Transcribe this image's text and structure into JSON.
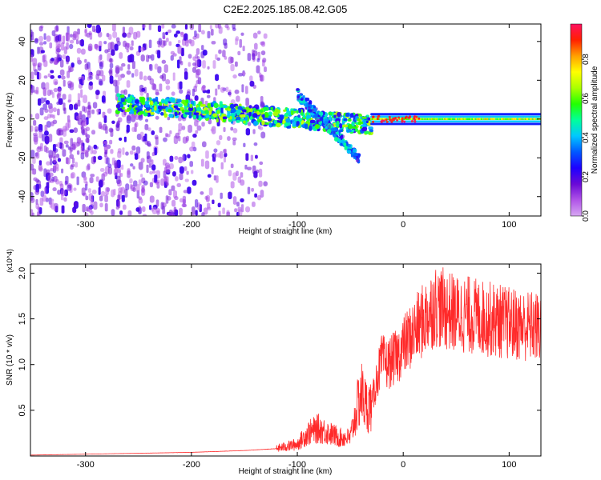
{
  "figure_title": "C2E2.2025.185.08.42.G05",
  "chart_data": [
    {
      "type": "heatmap",
      "title": "C2E2.2025.185.08.42.G05",
      "xlabel": "Height of straight line (km)",
      "ylabel": "Frequency (Hz)",
      "xlim": [
        -352,
        130
      ],
      "ylim": [
        -50,
        49
      ],
      "x_ticks": [
        -300,
        -200,
        -100,
        0,
        100
      ],
      "x_tick_labels": [
        "-300",
        "-200",
        "-100",
        "0",
        "100"
      ],
      "y_ticks": [
        -40,
        -20,
        0,
        20,
        40
      ],
      "y_tick_labels": [
        "-40",
        "-20",
        "0",
        "20",
        "40"
      ],
      "colorbar": {
        "label": "Normalized spectral amplitude",
        "range": [
          0,
          0.98
        ],
        "ticks": [
          0.0,
          0.2,
          0.4,
          0.6,
          0.8
        ],
        "tick_labels": [
          "0.0",
          "0.2",
          "0.4",
          "0.6",
          "0.8"
        ],
        "colormap": [
          "#d7a6f2",
          "#b054e8",
          "#6a0ad6",
          "#1e00ff",
          "#0058ff",
          "#00c8ff",
          "#00ff9a",
          "#22ff00",
          "#aaff00",
          "#ffff00",
          "#ffa000",
          "#ff2000",
          "#ff1060"
        ]
      },
      "regions": [
        {
          "name": "broadband noise",
          "x": [
            -352,
            -130
          ],
          "freq_range": [
            -50,
            49
          ],
          "amplitude": 0.15
        },
        {
          "name": "signal track",
          "x": [
            -270,
            -30
          ],
          "freq_start": 8,
          "freq_end": -3,
          "amplitude": 0.55
        },
        {
          "name": "secondary branch",
          "x": [
            -100,
            -42
          ],
          "freq_start": 13,
          "freq_end": -20,
          "amplitude": 0.3
        },
        {
          "name": "stable tone",
          "x": [
            -30,
            130
          ],
          "freq": 0,
          "amplitude": 0.6
        }
      ]
    },
    {
      "type": "line",
      "xlabel": "Height of straight line (km)",
      "ylabel": "SNR (10 * v/v)",
      "y_multiplier": "(x10^4)",
      "xlim": [
        -352,
        130
      ],
      "ylim": [
        0,
        2.1
      ],
      "x_ticks": [
        -300,
        -200,
        -100,
        0,
        100
      ],
      "x_tick_labels": [
        "-300",
        "-200",
        "-100",
        "0",
        "100"
      ],
      "y_ticks": [
        0.5,
        1.0,
        1.5,
        2.0
      ],
      "y_tick_labels": [
        "0.5",
        "1.0",
        "1.5",
        "2.0"
      ],
      "line_color": "#ff2a2a",
      "series": [
        {
          "x": [
            -352,
            -300,
            -250,
            -200,
            -150,
            -120,
            -100,
            -90,
            -80,
            -70,
            -60,
            -50,
            -45,
            -40,
            -35,
            -30,
            -25,
            -20,
            -15,
            -10,
            -5,
            0,
            10,
            20,
            30,
            40,
            50,
            60,
            70,
            80,
            90,
            100,
            110,
            120,
            130
          ],
          "y": [
            0.01,
            0.02,
            0.03,
            0.04,
            0.06,
            0.08,
            0.13,
            0.25,
            0.3,
            0.25,
            0.2,
            0.2,
            0.45,
            0.7,
            0.55,
            0.55,
            0.85,
            1.05,
            1.0,
            1.05,
            1.1,
            1.2,
            1.35,
            1.5,
            1.65,
            1.6,
            1.55,
            1.55,
            1.52,
            1.5,
            1.48,
            1.45,
            1.43,
            1.42,
            1.4
          ]
        }
      ]
    }
  ]
}
